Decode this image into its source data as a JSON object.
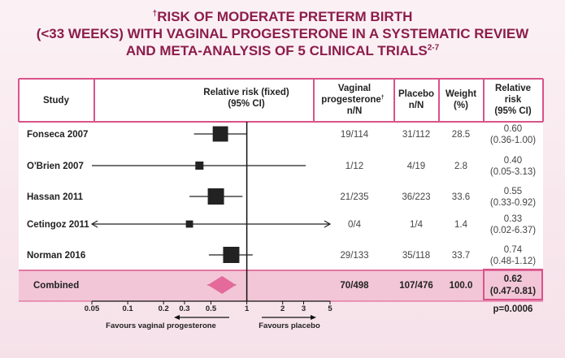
{
  "title": {
    "line1": "RISK OF MODERATE PRETERM BIRTH",
    "line2": "(<33 WEEKS) WITH VAGINAL PROGESTERONE IN A SYSTEMATIC REVIEW",
    "line3": "AND META-ANALYSIS OF 5 CLINICAL TRIALS",
    "dagger": "†",
    "refs": "2-7"
  },
  "headers": {
    "study": "Study",
    "rr_fixed_1": "Relative risk (fixed)",
    "rr_fixed_2": "(95% CI)",
    "vag_1": "Vaginal",
    "vag_2": "progesterone",
    "vag_dagger": "†",
    "vag_3": "n/N",
    "placebo_1": "Placebo",
    "placebo_2": "n/N",
    "weight_1": "Weight",
    "weight_2": "(%)",
    "rr_1": "Relative",
    "rr_2": "risk",
    "rr_3": "(95% CI)"
  },
  "combined_label": "Combined",
  "p_value": "p=0.0006",
  "favours_left": "Favours vaginal progesterone",
  "favours_right": "Favours placebo",
  "colors": {
    "accent": "#d9538a",
    "title": "#8c1d4b",
    "combined_band": "#f2c6d6",
    "diamond": "#e46a9b",
    "marker": "#222222"
  },
  "chart_data": {
    "type": "forest",
    "x_scale": "log",
    "x_ticks": [
      "0.05",
      "0.1",
      "0.2",
      "0.3",
      "0.5",
      "1",
      "2",
      "3",
      "5"
    ],
    "x_range": [
      0.05,
      5
    ],
    "reference_line": 1,
    "studies": [
      {
        "study": "Fonseca 2007",
        "vaginal": "19/114",
        "placebo": "31/112",
        "weight": "28.5",
        "rr_text": "0.60",
        "ci_text": "(0.36-1.00)",
        "rr": 0.6,
        "lo": 0.36,
        "hi": 1.0,
        "w": 28.5
      },
      {
        "study": "O'Brien 2007",
        "vaginal": "1/12",
        "placebo": "4/19",
        "weight": "2.8",
        "rr_text": "0.40",
        "ci_text": "(0.05-3.13)",
        "rr": 0.4,
        "lo": 0.05,
        "hi": 3.13,
        "w": 2.8
      },
      {
        "study": "Hassan 2011",
        "vaginal": "21/235",
        "placebo": "36/223",
        "weight": "33.6",
        "rr_text": "0.55",
        "ci_text": "(0.33-0.92)",
        "rr": 0.55,
        "lo": 0.33,
        "hi": 0.92,
        "w": 33.6
      },
      {
        "study": "Cetingoz 2011",
        "vaginal": "0/4",
        "placebo": "1/4",
        "weight": "1.4",
        "rr_text": "0.33",
        "ci_text": "(0.02-6.37)",
        "rr": 0.33,
        "lo": 0.02,
        "hi": 6.37,
        "w": 1.4
      },
      {
        "study": "Norman 2016",
        "vaginal": "29/133",
        "placebo": "35/118",
        "weight": "33.7",
        "rr_text": "0.74",
        "ci_text": "(0.48-1.12)",
        "rr": 0.74,
        "lo": 0.48,
        "hi": 1.12,
        "w": 33.7
      }
    ],
    "combined": {
      "vaginal": "70/498",
      "placebo": "107/476",
      "weight": "100.0",
      "rr_text": "0.62",
      "ci_text": "(0.47-0.81)",
      "rr": 0.62,
      "lo": 0.47,
      "hi": 0.81
    }
  }
}
